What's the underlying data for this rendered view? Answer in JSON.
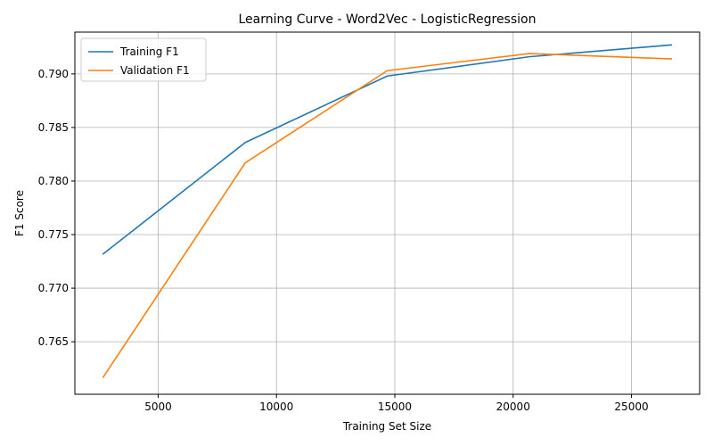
{
  "chart_data": {
    "type": "line",
    "title": "Learning Curve - Word2Vec - LogisticRegression",
    "xlabel": "Training Set Size",
    "ylabel": "F1 Score",
    "xlim": [
      1480,
      27880
    ],
    "ylim": [
      0.7601,
      0.7939
    ],
    "xticks": [
      5000,
      10000,
      15000,
      20000,
      25000
    ],
    "xtick_labels": [
      "5000",
      "10000",
      "15000",
      "20000",
      "25000"
    ],
    "yticks": [
      0.765,
      0.77,
      0.775,
      0.78,
      0.785,
      0.79
    ],
    "ytick_labels": [
      "0.765",
      "0.770",
      "0.775",
      "0.780",
      "0.785",
      "0.790"
    ],
    "grid": true,
    "legend_position": "top-left",
    "x": [
      2680,
      8680,
      14680,
      20680,
      26680
    ],
    "series": [
      {
        "name": "Training F1",
        "color": "#1f77b4",
        "values": [
          0.7732,
          0.7836,
          0.7898,
          0.7916,
          0.7927
        ]
      },
      {
        "name": "Validation F1",
        "color": "#ff7f0e",
        "values": [
          0.7617,
          0.7817,
          0.7903,
          0.7919,
          0.7914
        ]
      }
    ]
  }
}
